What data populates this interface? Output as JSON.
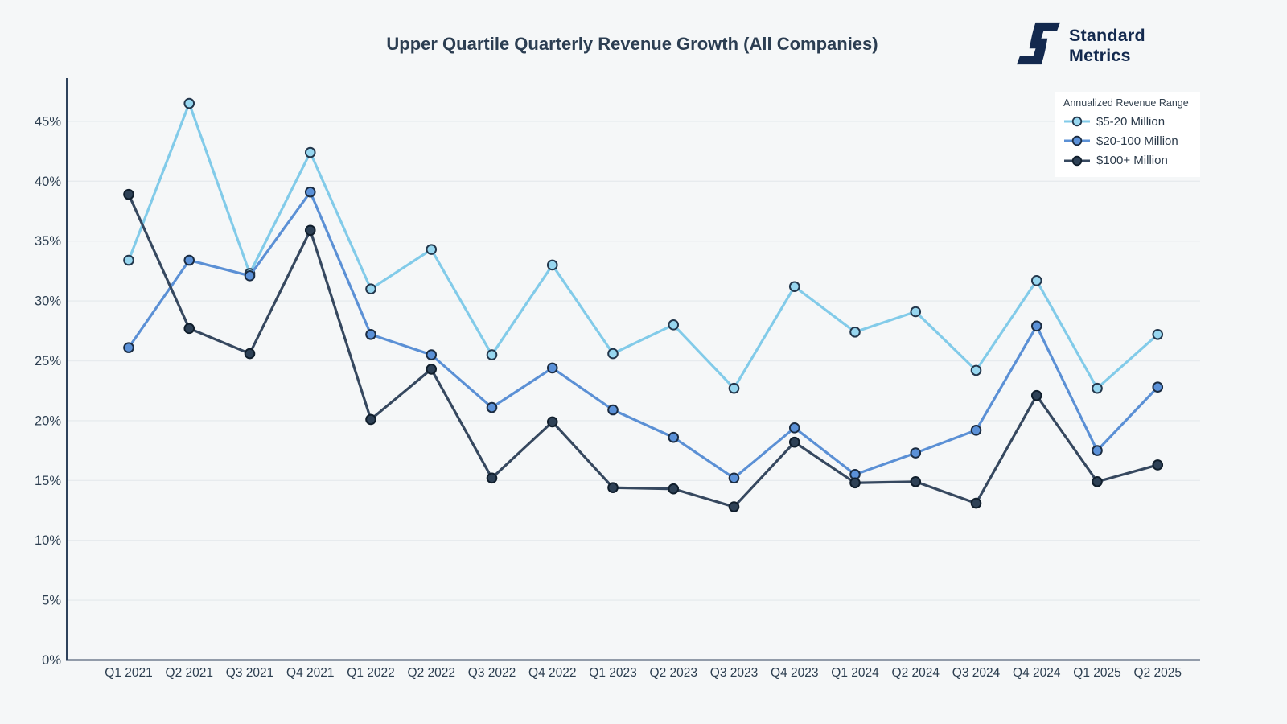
{
  "header": {
    "title": "Upper Quartile Quarterly Revenue Growth (All Companies)",
    "logo_line1": "Standard",
    "logo_line2": "Metrics"
  },
  "legend": {
    "title": "Annualized Revenue Range",
    "items": [
      {
        "label": "$5-20 Million"
      },
      {
        "label": "$20-100 Million"
      },
      {
        "label": "$100+ Million"
      }
    ]
  },
  "chart_data": {
    "type": "line",
    "title": "Upper Quartile Quarterly Revenue Growth (All Companies)",
    "x": [
      "Q1 2021",
      "Q2 2021",
      "Q3 2021",
      "Q4 2021",
      "Q1 2022",
      "Q2 2022",
      "Q3 2022",
      "Q4 2022",
      "Q1 2023",
      "Q2 2023",
      "Q3 2023",
      "Q4 2023",
      "Q1 2024",
      "Q2 2024",
      "Q3 2024",
      "Q4 2024",
      "Q1 2025",
      "Q2 2025"
    ],
    "series": [
      {
        "name": "$5-20 Million",
        "color": "#82CBE9",
        "marker_fill": "#97D6EF",
        "marker_stroke": "#23374C",
        "values": [
          33.4,
          46.5,
          32.3,
          42.4,
          31.0,
          34.3,
          25.5,
          33.0,
          25.6,
          28.0,
          22.7,
          31.2,
          27.4,
          29.1,
          24.2,
          31.7,
          22.7,
          27.2
        ]
      },
      {
        "name": "$20-100 Million",
        "color": "#5B90D5",
        "marker_fill": "#5B91D8",
        "marker_stroke": "#1B2C42",
        "values": [
          26.1,
          33.4,
          32.1,
          39.1,
          27.2,
          25.5,
          21.1,
          24.4,
          20.9,
          18.6,
          15.2,
          19.4,
          15.5,
          17.3,
          19.2,
          27.9,
          17.5,
          22.8
        ]
      },
      {
        "name": "$100+ Million",
        "color": "#36485F",
        "marker_fill": "#2E4156",
        "marker_stroke": "#101E2C",
        "values": [
          38.9,
          27.7,
          25.6,
          35.9,
          20.1,
          24.3,
          15.2,
          19.9,
          14.4,
          14.3,
          12.8,
          18.2,
          14.8,
          14.9,
          13.1,
          22.1,
          14.9,
          16.3
        ]
      }
    ],
    "ylabel": "",
    "xlabel": "",
    "ylim": [
      0,
      47.5
    ],
    "yticks": [
      0,
      5,
      10,
      15,
      20,
      25,
      30,
      35,
      40,
      45
    ],
    "ytick_suffix": "%",
    "grid": true,
    "legend_title": "Annualized Revenue Range",
    "legend_position": "top-right"
  },
  "colors": {
    "background": "#F5F7F8",
    "gridline": "#E7EBEE",
    "axis": "#2E425C",
    "tick_text": "#2C3E50",
    "title_text": "#2C3E52",
    "logo_navy": "#13294E",
    "legend_bg": "#FFFFFF"
  }
}
